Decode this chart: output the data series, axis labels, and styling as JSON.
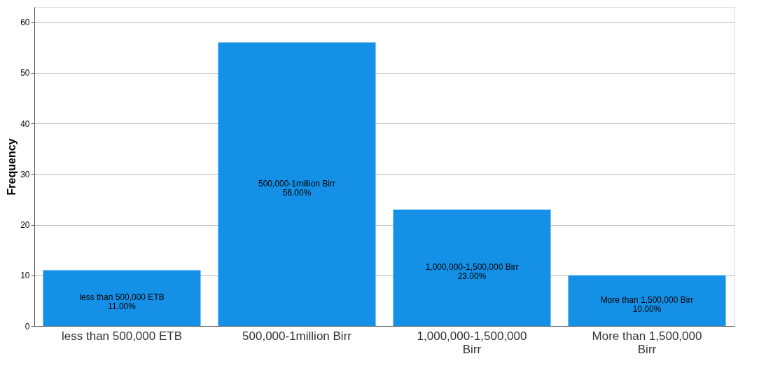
{
  "chart_data": {
    "type": "bar",
    "ylabel": "Frequency",
    "categories": [
      "less than 500,000 ETB",
      "500,000-1million Birr",
      "1,000,000-1,500,000 Birr",
      "More than 1,500,000 Birr"
    ],
    "values": [
      11,
      56,
      23,
      10
    ],
    "color": "#1490e6",
    "value_labels": [
      "less than 500,000 ETB\n11.00%",
      "500,000-1million Birr\n56.00%",
      "1,000,000-1,500,000 Birr\n23.00%",
      "More than 1,500,000 Birr\n10.00%"
    ],
    "ylim": [
      0,
      63
    ],
    "yticks": [
      0,
      10,
      20,
      30,
      40,
      50,
      60
    ],
    "grid": "y"
  }
}
